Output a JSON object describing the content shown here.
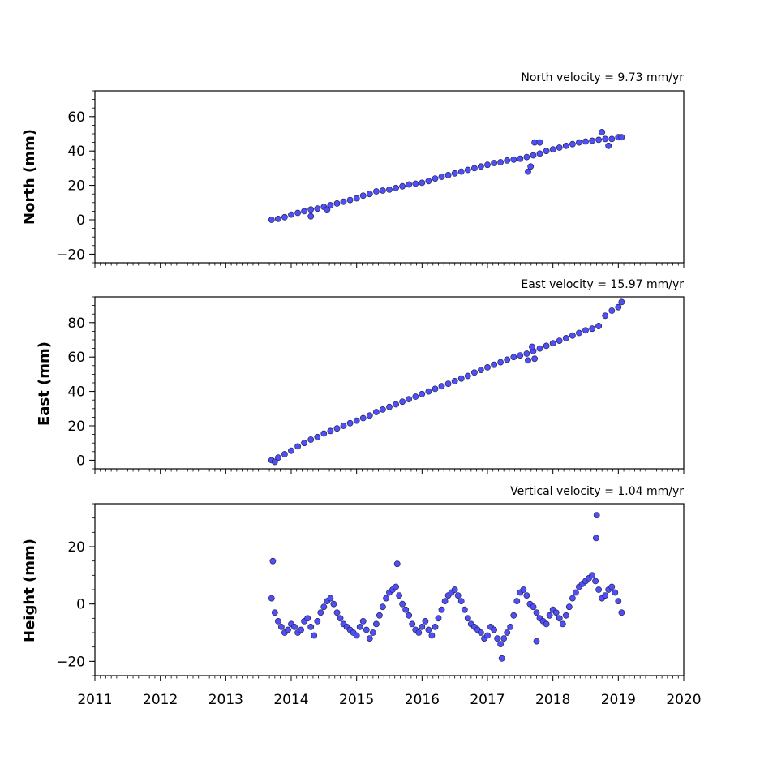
{
  "chart_data": [
    {
      "type": "scatter",
      "title": "North velocity = 9.73 mm/yr",
      "ylabel": "North (mm)",
      "xlabel": "",
      "xlim": [
        2011,
        2020
      ],
      "ylim": [
        -25,
        75
      ],
      "y_ticks": [
        -20,
        0,
        20,
        40,
        60
      ],
      "x_ticks": [
        2011,
        2012,
        2013,
        2014,
        2015,
        2016,
        2017,
        2018,
        2019,
        2020
      ],
      "show_x_tick_labels": false,
      "grid": false,
      "marker_color": "#4f4ff5",
      "marker_edge_color": "#1a1a40",
      "series": [
        {
          "x": [
            2013.7,
            2013.8,
            2013.9,
            2014.0,
            2014.1,
            2014.2,
            2014.3,
            2014.4,
            2014.5,
            2014.6,
            2014.7,
            2014.8,
            2014.9,
            2015.0,
            2015.1,
            2015.2,
            2015.3,
            2015.4,
            2015.5,
            2015.6,
            2015.7,
            2015.8,
            2015.9,
            2016.0,
            2016.1,
            2016.2,
            2016.3,
            2016.4,
            2016.5,
            2016.6,
            2016.7,
            2016.8,
            2016.9,
            2017.0,
            2017.1,
            2017.2,
            2017.3,
            2017.4,
            2017.5,
            2017.6,
            2017.7,
            2017.8,
            2017.9,
            2018.0,
            2018.1,
            2018.2,
            2018.3,
            2018.4,
            2018.5,
            2018.6,
            2018.7,
            2018.8,
            2018.9,
            2019.0,
            2019.05,
            2017.62,
            2017.66,
            2017.72,
            2017.8,
            2014.3,
            2014.55,
            2018.75,
            2018.85
          ],
          "y": [
            0,
            0.5,
            1.5,
            3,
            4,
            5,
            6,
            6.5,
            7.5,
            8.5,
            9.5,
            10.5,
            11.5,
            12.5,
            14,
            15,
            16.5,
            17,
            17.5,
            18.5,
            19.5,
            20.5,
            21,
            21.5,
            22.5,
            24,
            25,
            26,
            27,
            28,
            29,
            30,
            31,
            32,
            33,
            33.5,
            34.5,
            35,
            35.5,
            36.5,
            37.5,
            38.5,
            40,
            41,
            42,
            43,
            44,
            45,
            45.5,
            46,
            46.5,
            47,
            47,
            48,
            48,
            28,
            31,
            45,
            45,
            2,
            6,
            51,
            43
          ]
        }
      ]
    },
    {
      "type": "scatter",
      "title": "East velocity = 15.97 mm/yr",
      "ylabel": "East (mm)",
      "xlabel": "",
      "xlim": [
        2011,
        2020
      ],
      "ylim": [
        -5,
        95
      ],
      "y_ticks": [
        0,
        20,
        40,
        60,
        80
      ],
      "x_ticks": [
        2011,
        2012,
        2013,
        2014,
        2015,
        2016,
        2017,
        2018,
        2019,
        2020
      ],
      "show_x_tick_labels": false,
      "grid": false,
      "marker_color": "#4f4ff5",
      "marker_edge_color": "#1a1a40",
      "series": [
        {
          "x": [
            2013.7,
            2013.8,
            2013.9,
            2014.0,
            2014.1,
            2014.2,
            2014.3,
            2014.4,
            2014.5,
            2014.6,
            2014.7,
            2014.8,
            2014.9,
            2015.0,
            2015.1,
            2015.2,
            2015.3,
            2015.4,
            2015.5,
            2015.6,
            2015.7,
            2015.8,
            2015.9,
            2016.0,
            2016.1,
            2016.2,
            2016.3,
            2016.4,
            2016.5,
            2016.6,
            2016.7,
            2016.8,
            2016.9,
            2017.0,
            2017.1,
            2017.2,
            2017.3,
            2017.4,
            2017.5,
            2017.6,
            2017.7,
            2017.8,
            2017.9,
            2018.0,
            2018.1,
            2018.2,
            2018.3,
            2018.4,
            2018.5,
            2018.6,
            2018.7,
            2018.8,
            2018.9,
            2019.0,
            2019.05,
            2017.62,
            2017.68,
            2017.72,
            2013.75,
            2018.7
          ],
          "y": [
            0,
            1.5,
            3.5,
            5.5,
            8,
            10,
            12,
            13.5,
            15.5,
            17,
            18.5,
            20,
            21.5,
            23,
            24.5,
            26,
            28,
            29.5,
            31,
            32.5,
            34,
            35.5,
            37,
            38.5,
            40,
            41.5,
            43,
            44.5,
            46,
            47.5,
            49,
            51,
            52.5,
            54,
            55.5,
            57,
            58.5,
            60,
            61,
            62,
            63.5,
            65,
            66.5,
            68,
            69.5,
            71,
            72.5,
            74,
            75.5,
            76.5,
            78,
            84,
            87,
            89,
            92,
            58,
            66,
            59,
            -1,
            78
          ]
        }
      ]
    },
    {
      "type": "scatter",
      "title": "Vertical velocity = 1.04 mm/yr",
      "ylabel": "Height (mm)",
      "xlabel": "",
      "xlim": [
        2011,
        2020
      ],
      "ylim": [
        -25,
        35
      ],
      "y_ticks": [
        -20,
        0,
        20
      ],
      "x_ticks": [
        2011,
        2012,
        2013,
        2014,
        2015,
        2016,
        2017,
        2018,
        2019,
        2020
      ],
      "x_tick_labels": [
        "2011",
        "2012",
        "2013",
        "2014",
        "2015",
        "2016",
        "2017",
        "2018",
        "2019",
        "2020"
      ],
      "show_x_tick_labels": true,
      "grid": false,
      "marker_color": "#4f4ff5",
      "marker_edge_color": "#1a1a40",
      "series": [
        {
          "x": [
            2013.7,
            2013.75,
            2013.8,
            2013.85,
            2013.9,
            2013.95,
            2014.0,
            2014.05,
            2014.1,
            2014.15,
            2014.2,
            2014.25,
            2014.3,
            2014.35,
            2014.4,
            2014.45,
            2014.5,
            2014.55,
            2014.6,
            2014.65,
            2014.7,
            2014.75,
            2014.8,
            2014.85,
            2014.9,
            2014.95,
            2015.0,
            2015.05,
            2015.1,
            2015.15,
            2015.2,
            2015.25,
            2015.3,
            2015.35,
            2015.4,
            2015.45,
            2015.5,
            2015.55,
            2015.6,
            2015.65,
            2015.7,
            2015.75,
            2015.8,
            2015.85,
            2015.9,
            2015.95,
            2016.0,
            2016.05,
            2016.1,
            2016.15,
            2016.2,
            2016.25,
            2016.3,
            2016.35,
            2016.4,
            2016.45,
            2016.5,
            2016.55,
            2016.6,
            2016.65,
            2016.7,
            2016.75,
            2016.8,
            2016.85,
            2016.9,
            2016.95,
            2017.0,
            2017.05,
            2017.1,
            2017.15,
            2017.2,
            2017.25,
            2017.3,
            2017.35,
            2017.4,
            2017.45,
            2017.5,
            2017.55,
            2017.6,
            2017.65,
            2017.7,
            2017.75,
            2017.8,
            2017.85,
            2017.9,
            2017.95,
            2018.0,
            2018.05,
            2018.1,
            2018.15,
            2018.2,
            2018.25,
            2018.3,
            2018.35,
            2018.4,
            2018.45,
            2018.5,
            2018.55,
            2018.6,
            2018.65,
            2018.7,
            2018.75,
            2018.8,
            2018.85,
            2018.9,
            2018.95,
            2019.0,
            2019.05,
            2013.72,
            2018.67,
            2018.66,
            2017.22,
            2017.75,
            2015.62
          ],
          "y": [
            2,
            -3,
            -6,
            -8,
            -10,
            -9,
            -7,
            -8,
            -10,
            -9,
            -6,
            -5,
            -8,
            -11,
            -6,
            -3,
            -1,
            1,
            2,
            0,
            -3,
            -5,
            -7,
            -8,
            -9,
            -10,
            -11,
            -8,
            -6,
            -9,
            -12,
            -10,
            -7,
            -4,
            -1,
            2,
            4,
            5,
            6,
            3,
            0,
            -2,
            -4,
            -7,
            -9,
            -10,
            -8,
            -6,
            -9,
            -11,
            -8,
            -5,
            -2,
            1,
            3,
            4,
            5,
            3,
            1,
            -2,
            -5,
            -7,
            -8,
            -9,
            -10,
            -12,
            -11,
            -8,
            -9,
            -12,
            -14,
            -12,
            -10,
            -8,
            -4,
            1,
            4,
            5,
            3,
            0,
            -1,
            -3,
            -5,
            -6,
            -7,
            -4,
            -2,
            -3,
            -5,
            -7,
            -4,
            -1,
            2,
            4,
            6,
            7,
            8,
            9,
            10,
            8,
            5,
            2,
            3,
            5,
            6,
            4,
            1,
            -3,
            15,
            31,
            23,
            -19,
            -13,
            14
          ]
        }
      ]
    }
  ]
}
